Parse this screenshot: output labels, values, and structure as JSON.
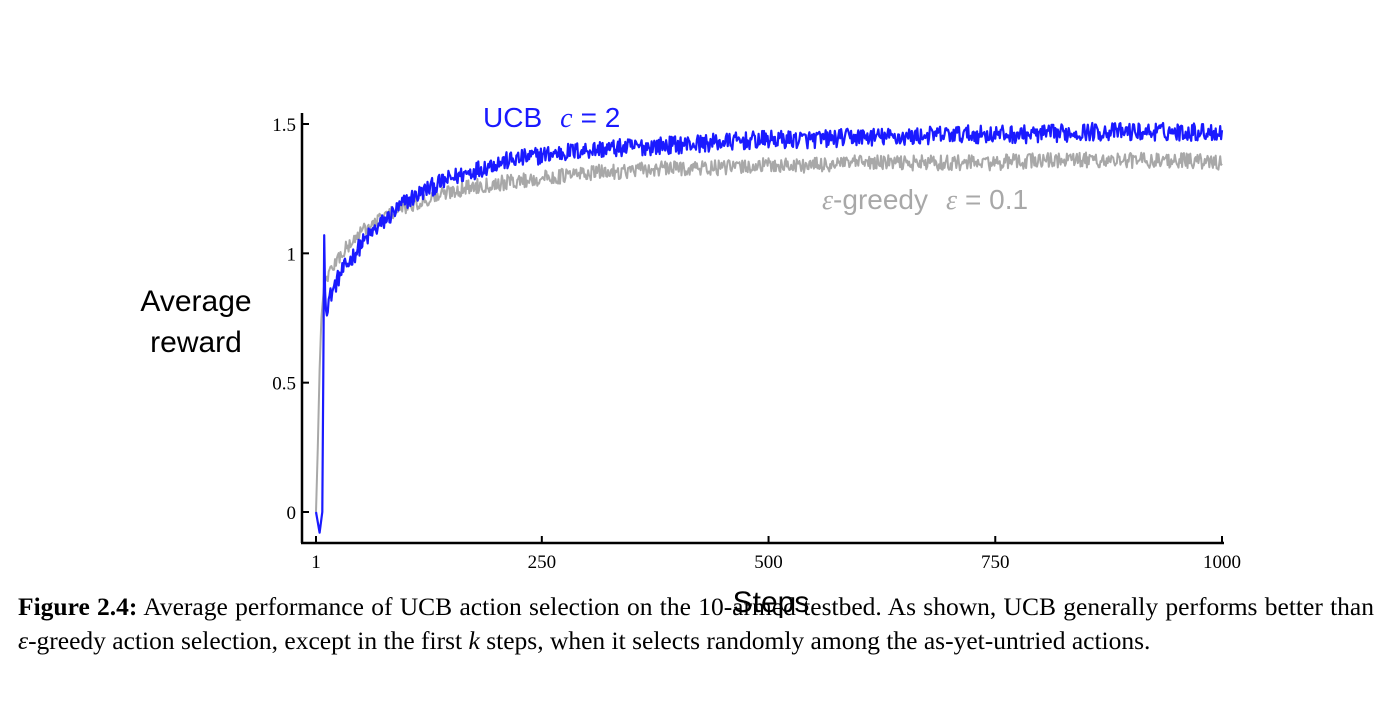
{
  "chart_data": {
    "type": "line",
    "title": "",
    "xlabel": "Steps",
    "ylabel_lines": [
      "Average",
      "reward"
    ],
    "xlim": [
      1,
      1000
    ],
    "ylim": [
      -0.1,
      1.55
    ],
    "xticks": [
      1,
      250,
      500,
      750,
      1000
    ],
    "xtick_labels": [
      "1",
      "250",
      "500",
      "750",
      "1000"
    ],
    "yticks": [
      0,
      0.5,
      1,
      1.5
    ],
    "ytick_labels": [
      "0",
      "0.5",
      "1",
      "1.5"
    ],
    "grid": false,
    "legend": "inline labels near curves",
    "series": [
      {
        "name": "UCB  c = 2",
        "label_prefix": "UCB",
        "label_var": "c",
        "label_value": "= 2",
        "color": "#1a1aff",
        "x": [
          1,
          5,
          8,
          10,
          11,
          12,
          15,
          20,
          25,
          30,
          40,
          50,
          60,
          75,
          100,
          125,
          150,
          175,
          200,
          250,
          300,
          350,
          400,
          450,
          500,
          550,
          600,
          650,
          700,
          750,
          800,
          850,
          900,
          950,
          1000
        ],
        "y": [
          0.0,
          -0.08,
          0.0,
          1.07,
          0.85,
          0.78,
          0.82,
          0.86,
          0.9,
          0.93,
          0.98,
          1.03,
          1.07,
          1.12,
          1.2,
          1.25,
          1.29,
          1.32,
          1.35,
          1.38,
          1.4,
          1.41,
          1.42,
          1.43,
          1.44,
          1.44,
          1.45,
          1.45,
          1.46,
          1.46,
          1.46,
          1.47,
          1.47,
          1.47,
          1.47
        ]
      },
      {
        "name": "ε-greedy  ε = 0.1",
        "label_var": "ε",
        "label_text": "-greedy",
        "label_var2": "ε",
        "label_value": "= 0.1",
        "color": "#a8a8a8",
        "x": [
          1,
          3,
          5,
          7,
          10,
          12,
          15,
          20,
          25,
          30,
          40,
          50,
          60,
          75,
          100,
          125,
          150,
          175,
          200,
          250,
          300,
          350,
          400,
          450,
          500,
          550,
          600,
          650,
          700,
          750,
          800,
          850,
          900,
          950,
          1000
        ],
        "y": [
          0.0,
          0.25,
          0.55,
          0.75,
          0.88,
          0.9,
          0.92,
          0.95,
          0.98,
          1.0,
          1.04,
          1.08,
          1.1,
          1.14,
          1.18,
          1.21,
          1.24,
          1.26,
          1.27,
          1.29,
          1.31,
          1.32,
          1.33,
          1.33,
          1.34,
          1.34,
          1.35,
          1.35,
          1.35,
          1.35,
          1.36,
          1.36,
          1.36,
          1.36,
          1.35
        ]
      }
    ]
  },
  "caption": {
    "label": "Figure 2.4:",
    "part1": " Average performance of UCB action selection on the 10-armed testbed. As shown, UCB generally performs better than ",
    "var_eps": "ε",
    "part2": "-greedy action selection, except in the first ",
    "var_k": "k",
    "part3": " steps, when it selects randomly among the as-yet-untried actions."
  }
}
